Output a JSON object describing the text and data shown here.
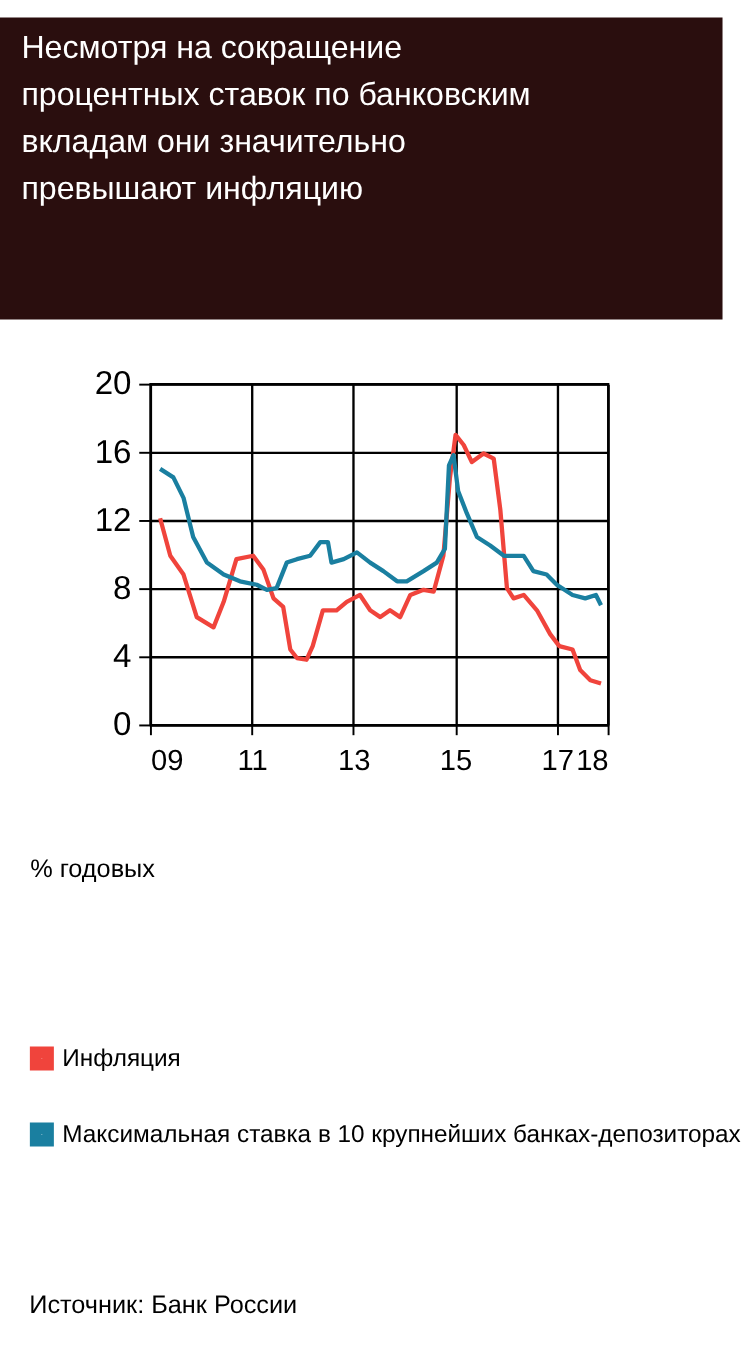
{
  "chart_data": {
    "type": "line",
    "title": "Несмотря на сокращение процентных ставок по банковским вкладам они значительно превышают инфляцию",
    "ylabel": "% годовых",
    "annotations": [
      "Источник: Банк России"
    ],
    "xlim": [
      2009,
      2018
    ],
    "xticks": [
      {
        "value": 2009,
        "label": "09"
      },
      {
        "value": 2011,
        "label": "11"
      },
      {
        "value": 2013,
        "label": "13"
      },
      {
        "value": 2015,
        "label": "15"
      },
      {
        "value": 2017,
        "label": "17"
      },
      {
        "value": 2018,
        "label": "18"
      }
    ],
    "ylim": [
      0,
      20
    ],
    "yticks": [
      0,
      4,
      8,
      12,
      16,
      20
    ],
    "grid": true,
    "legend": "bottom",
    "marker": "none",
    "line_style": "solid",
    "series": [
      {
        "name": "Инфляция",
        "color": "#f0443c",
        "x": [
          2009.2,
          2009.4,
          2009.66,
          2009.92,
          2010.25,
          2010.45,
          2010.7,
          2011.03,
          2011.23,
          2011.43,
          2011.62,
          2011.76,
          2011.89,
          2012.08,
          2012.2,
          2012.4,
          2012.67,
          2012.87,
          2013.13,
          2013.33,
          2013.53,
          2013.72,
          2013.92,
          2014.12,
          2014.38,
          2014.58,
          2014.77,
          2014.9,
          2015.01,
          2015.17,
          2015.33,
          2015.56,
          2015.76,
          2015.89,
          2016.02,
          2016.15,
          2016.35,
          2016.61,
          2016.87,
          2017.05,
          2017.31,
          2017.46,
          2017.66,
          2017.87
        ],
        "values": [
          12.1,
          9.9,
          8.8,
          6.3,
          5.7,
          7.2,
          9.7,
          9.9,
          9.1,
          7.4,
          6.9,
          4.4,
          3.9,
          3.8,
          4.6,
          6.7,
          6.7,
          7.2,
          7.6,
          6.7,
          6.3,
          6.7,
          6.3,
          7.6,
          7.9,
          7.8,
          9.9,
          14.5,
          17.0,
          16.4,
          15.4,
          15.9,
          15.6,
          12.6,
          8.0,
          7.4,
          7.6,
          6.7,
          5.3,
          4.6,
          4.4,
          3.2,
          2.6,
          2.4
        ]
      },
      {
        "name": "Максимальная ставка в 10 крупнейших банках-депозиторах",
        "color": "#1a7fa0",
        "x": [
          2009.2,
          2009.46,
          2009.66,
          2009.85,
          2010.12,
          2010.45,
          2010.77,
          2011.1,
          2011.3,
          2011.49,
          2011.69,
          2011.89,
          2012.15,
          2012.35,
          2012.5,
          2012.57,
          2012.81,
          2013.07,
          2013.33,
          2013.59,
          2013.86,
          2014.05,
          2014.38,
          2014.64,
          2014.8,
          2014.88,
          2014.97,
          2015.06,
          2015.23,
          2015.43,
          2015.69,
          2015.96,
          2016.35,
          2016.54,
          2016.8,
          2017.0,
          2017.31,
          2017.56,
          2017.77,
          2017.87
        ],
        "values": [
          15.0,
          14.5,
          13.3,
          11.0,
          9.5,
          8.8,
          8.4,
          8.2,
          7.9,
          8.0,
          9.5,
          9.7,
          9.9,
          10.7,
          10.7,
          9.5,
          9.7,
          10.1,
          9.5,
          9.0,
          8.4,
          8.4,
          9.0,
          9.5,
          10.3,
          15.2,
          15.8,
          13.7,
          12.4,
          11.0,
          10.5,
          9.9,
          9.9,
          9.0,
          8.8,
          8.2,
          7.6,
          7.4,
          7.6,
          7.0
        ]
      }
    ]
  }
}
